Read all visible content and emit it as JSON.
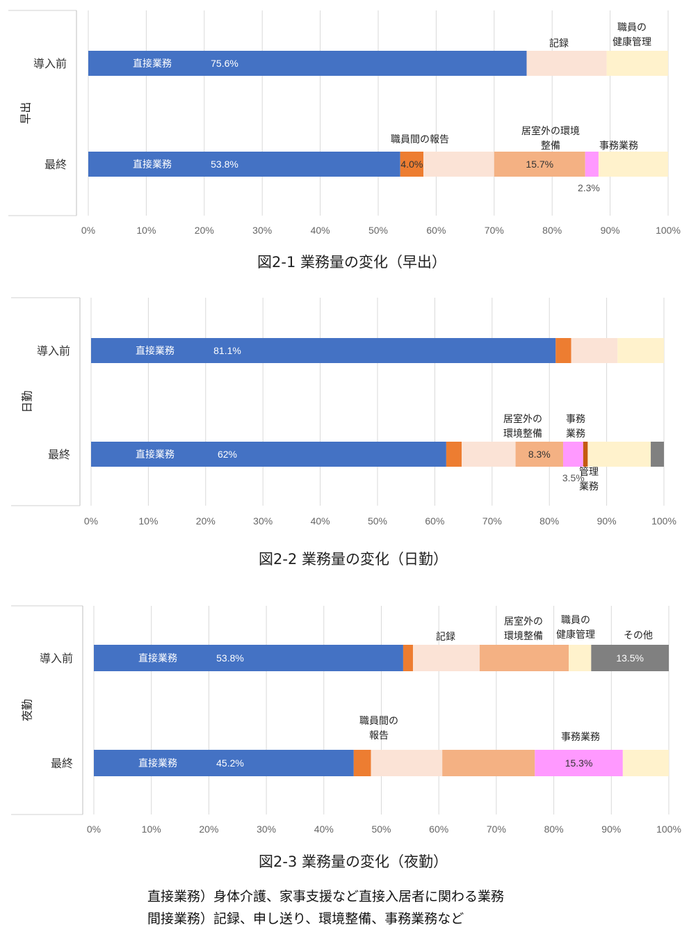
{
  "legend_colors": {
    "直接業務": "#4472C4",
    "職員間の報告": "#ED7D31",
    "記録": "#FBE3D6",
    "居室外の環境整備": "#F4B183",
    "事務業務": "#FF99FF",
    "管理業務": "#C55A11",
    "職員の健康管理": "#FFF2CC",
    "その他": "#808080"
  },
  "x_ticks": [
    "0%",
    "10%",
    "20%",
    "30%",
    "40%",
    "50%",
    "60%",
    "70%",
    "80%",
    "90%",
    "100%"
  ],
  "chart_data": [
    {
      "type": "bar",
      "orientation": "horizontal",
      "stacked": "percent",
      "title": "図2-1 業務量の変化（早出）",
      "group_label": "早出",
      "categories": [
        "導入前",
        "最終"
      ],
      "xlim": [
        0,
        100
      ],
      "grid": true,
      "bars": [
        {
          "category": "導入前",
          "segments": [
            {
              "name": "直接業務",
              "value": 75.6,
              "label": "75.6%"
            },
            {
              "name": "記録",
              "value": 13.8
            },
            {
              "name": "職員の健康管理",
              "value": 10.6
            }
          ]
        },
        {
          "category": "最終",
          "segments": [
            {
              "name": "直接業務",
              "value": 53.8,
              "label": "53.8%"
            },
            {
              "name": "職員間の報告",
              "value": 4.0,
              "label": "4.0%"
            },
            {
              "name": "記録",
              "value": 12.2
            },
            {
              "name": "居室外の環境整備",
              "value": 15.7,
              "label": "15.7%"
            },
            {
              "name": "事務業務",
              "value": 2.3,
              "label": "2.3%"
            },
            {
              "name": "職員の健康管理",
              "value": 12.0
            }
          ]
        }
      ],
      "annotations": [
        {
          "bar": 0,
          "text": "記録",
          "lines": [
            "記録"
          ]
        },
        {
          "bar": 0,
          "text": "職員の健康管理",
          "lines": [
            "職員の",
            "健康管理"
          ]
        },
        {
          "bar": 1,
          "text": "職員間の報告",
          "lines": [
            "職員間の報告"
          ]
        },
        {
          "bar": 1,
          "text": "居室外の環境整備",
          "lines": [
            "居室外の環境",
            "整備"
          ]
        },
        {
          "bar": 1,
          "text": "事務業務",
          "lines": [
            "事務業務"
          ]
        }
      ]
    },
    {
      "type": "bar",
      "orientation": "horizontal",
      "stacked": "percent",
      "title": "図2-2 業務量の変化（日勤）",
      "group_label": "日勤",
      "categories": [
        "導入前",
        "最終"
      ],
      "xlim": [
        0,
        100
      ],
      "grid": true,
      "bars": [
        {
          "category": "導入前",
          "segments": [
            {
              "name": "直接業務",
              "value": 81.1,
              "label": "81.1%"
            },
            {
              "name": "職員間の報告",
              "value": 2.7
            },
            {
              "name": "記録",
              "value": 8.1
            },
            {
              "name": "職員の健康管理",
              "value": 8.1
            }
          ]
        },
        {
          "category": "最終",
          "segments": [
            {
              "name": "直接業務",
              "value": 62,
              "label": "62%"
            },
            {
              "name": "職員間の報告",
              "value": 2.7
            },
            {
              "name": "記録",
              "value": 9.4
            },
            {
              "name": "居室外の環境整備",
              "value": 8.3,
              "label": "8.3%"
            },
            {
              "name": "事務業務",
              "value": 3.5,
              "label": "3.5%"
            },
            {
              "name": "管理業務",
              "value": 0.8
            },
            {
              "name": "職員の健康管理",
              "value": 11.0
            },
            {
              "name": "その他",
              "value": 2.3
            }
          ]
        }
      ],
      "annotations": [
        {
          "bar": 1,
          "text": "居室外の環境整備",
          "lines": [
            "居室外の",
            "環境整備"
          ]
        },
        {
          "bar": 1,
          "text": "事務業務",
          "lines": [
            "事務",
            "業務"
          ]
        },
        {
          "bar": 1,
          "text": "管理業務",
          "lines": [
            "管理",
            "業務"
          ]
        }
      ]
    },
    {
      "type": "bar",
      "orientation": "horizontal",
      "stacked": "percent",
      "title": "図2-3 業務量の変化（夜勤）",
      "group_label": "夜勤",
      "categories": [
        "導入前",
        "最終"
      ],
      "xlim": [
        0,
        100
      ],
      "grid": true,
      "bars": [
        {
          "category": "導入前",
          "segments": [
            {
              "name": "直接業務",
              "value": 53.8,
              "label": "53.8%"
            },
            {
              "name": "職員間の報告",
              "value": 1.7
            },
            {
              "name": "記録",
              "value": 11.6
            },
            {
              "name": "居室外の環境整備",
              "value": 15.5
            },
            {
              "name": "職員の健康管理",
              "value": 3.9
            },
            {
              "name": "その他",
              "value": 13.5,
              "label": "13.5%"
            }
          ]
        },
        {
          "category": "最終",
          "segments": [
            {
              "name": "直接業務",
              "value": 45.2,
              "label": "45.2%"
            },
            {
              "name": "職員間の報告",
              "value": 3.0
            },
            {
              "name": "記録",
              "value": 12.4
            },
            {
              "name": "居室外の環境整備",
              "value": 16.1
            },
            {
              "name": "事務業務",
              "value": 15.3,
              "label": "15.3%"
            },
            {
              "name": "職員の健康管理",
              "value": 8.0
            }
          ]
        }
      ],
      "annotations": [
        {
          "bar": 0,
          "text": "記録",
          "lines": [
            "記録"
          ]
        },
        {
          "bar": 0,
          "text": "居室外の環境整備",
          "lines": [
            "居室外の",
            "環境整備"
          ]
        },
        {
          "bar": 0,
          "text": "職員の健康管理",
          "lines": [
            "職員の",
            "健康管理"
          ]
        },
        {
          "bar": 0,
          "text": "その他",
          "lines": [
            "その他"
          ]
        },
        {
          "bar": 1,
          "text": "職員間の報告",
          "lines": [
            "職員間の",
            "報告"
          ]
        },
        {
          "bar": 1,
          "text": "事務業務",
          "lines": [
            "事務業務"
          ]
        }
      ]
    }
  ],
  "notes": {
    "direct": "直接業務）身体介護、家事支援など直接入居者に関わる業務",
    "indirect": "間接業務）記録、申し送り、環境整備、事務業務など"
  }
}
